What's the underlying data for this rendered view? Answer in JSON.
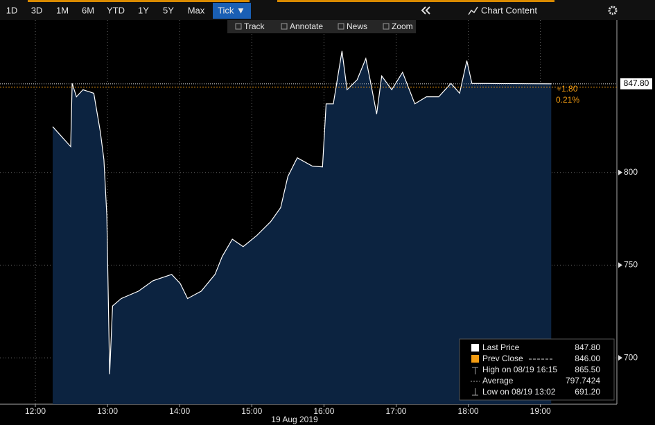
{
  "toolbar": {
    "ranges": [
      "1D",
      "3D",
      "1M",
      "6M",
      "YTD",
      "1Y",
      "5Y",
      "Max"
    ],
    "active": "Tick ▼",
    "chart_content": "Chart Content",
    "tools": [
      "Track",
      "Annotate",
      "News",
      "Zoom"
    ]
  },
  "chart_data": {
    "type": "area",
    "x": [
      12.24,
      12.49,
      12.51,
      12.57,
      12.66,
      12.81,
      12.9,
      12.95,
      12.99,
      13.03,
      13.07,
      13.19,
      13.43,
      13.63,
      13.89,
      14.01,
      14.11,
      14.3,
      14.49,
      14.59,
      14.73,
      14.88,
      15.07,
      15.26,
      15.4,
      15.5,
      15.63,
      15.84,
      15.98,
      16.03,
      16.13,
      16.25,
      16.32,
      16.46,
      16.58,
      16.65,
      16.73,
      16.8,
      16.94,
      17.09,
      17.26,
      17.42,
      17.59,
      17.76,
      17.88,
      17.98,
      18.05,
      18.24,
      19.15
    ],
    "values": [
      824.7,
      813.9,
      848,
      840.8,
      844.6,
      842.7,
      822,
      807,
      777,
      691.2,
      728,
      732,
      736,
      741.6,
      745,
      740,
      732,
      736,
      745,
      754.7,
      764,
      760,
      766,
      773.4,
      781,
      797.8,
      807.9,
      803.4,
      803,
      837,
      837,
      865.5,
      844.6,
      850,
      861.4,
      848,
      831.5,
      852,
      844.6,
      854,
      837,
      840.8,
      840.8,
      848,
      842.7,
      860.3,
      848,
      848,
      847.8
    ],
    "line_color": "#ffffff",
    "fill_color": "#0c2340",
    "xlim": [
      11.51,
      20.06
    ],
    "xticks": [
      {
        "value": 12,
        "label": "12:00"
      },
      {
        "value": 13,
        "label": "13:00"
      },
      {
        "value": 14,
        "label": "14:00"
      },
      {
        "value": 15,
        "label": "15:00"
      },
      {
        "value": 16,
        "label": "16:00"
      },
      {
        "value": 17,
        "label": "17:00"
      },
      {
        "value": 18,
        "label": "18:00"
      },
      {
        "value": 19,
        "label": "19:00"
      }
    ],
    "x_label": "19 Aug 2019",
    "ylim": [
      675,
      893
    ],
    "yticks": [
      700,
      750,
      800
    ],
    "grid": true,
    "last_price": {
      "value": 847.8,
      "label": "847.80"
    },
    "prev_close": {
      "value": 846,
      "label": "846.00"
    },
    "change": "+1.80",
    "change_pct": "0.21%",
    "legend": {
      "last": "Last Price",
      "prev": "Prev Close",
      "high": "High on 08/19 16:15",
      "high_value": "865.50",
      "average": "Average",
      "average_value": "797.7424",
      "low": "Low on 08/19 13:02",
      "low_value": "691.20"
    }
  }
}
